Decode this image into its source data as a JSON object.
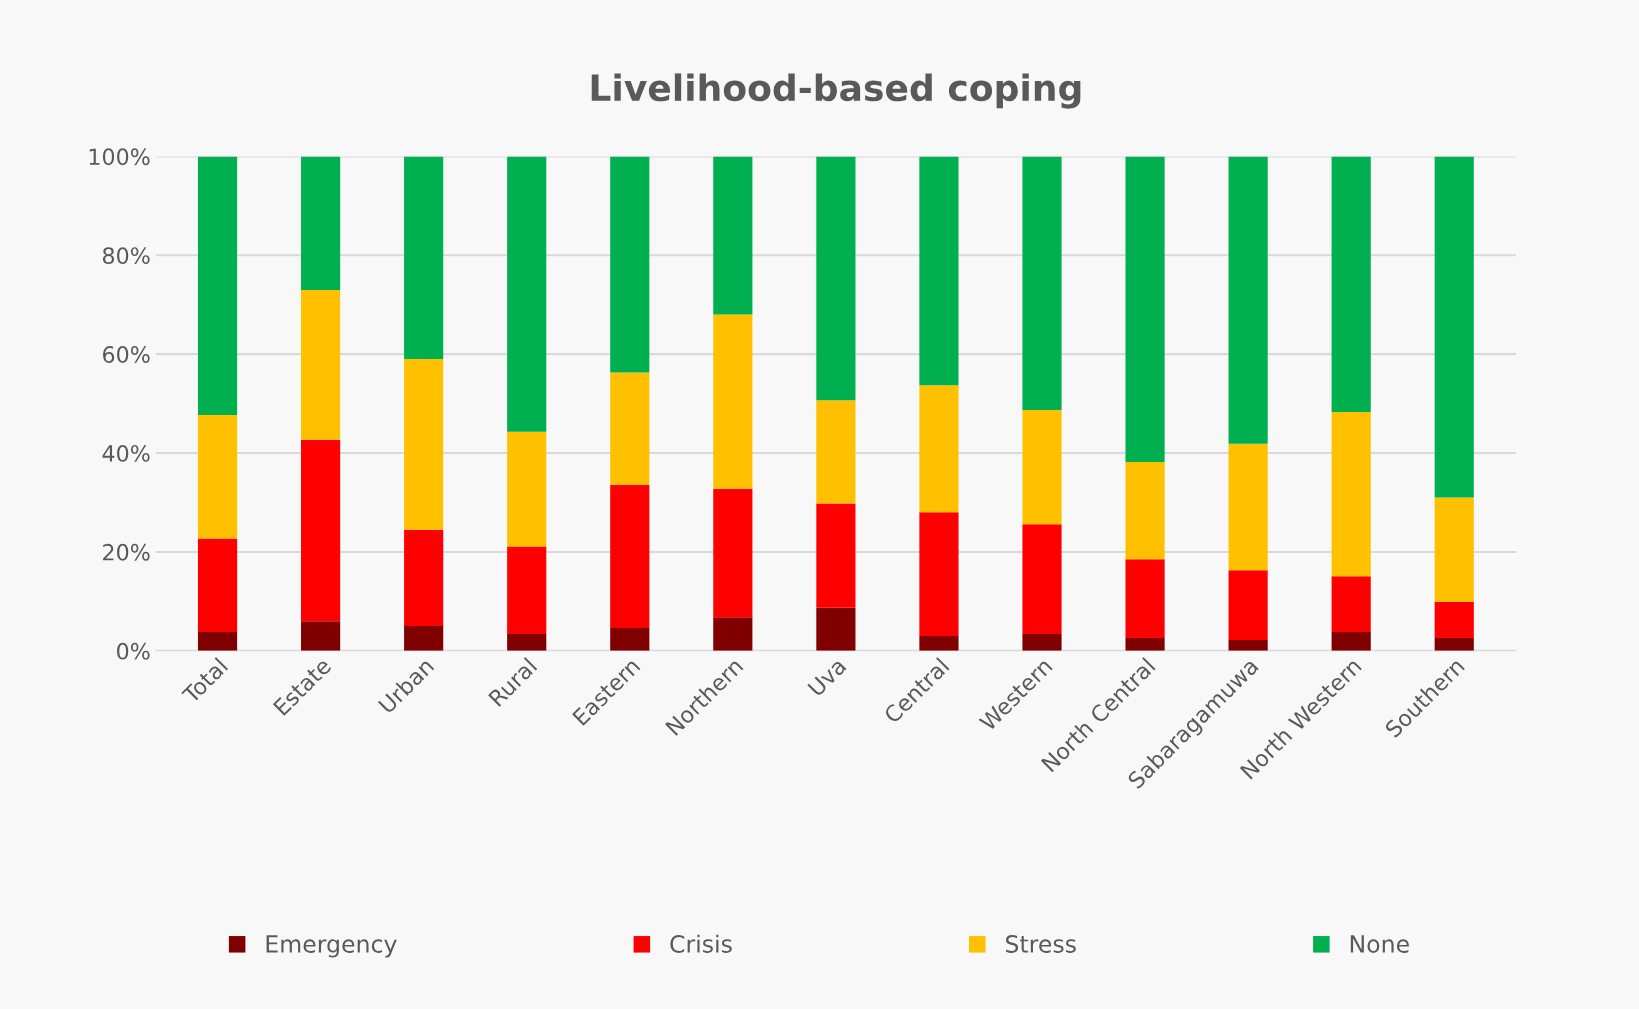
{
  "chart_data": {
    "type": "bar",
    "title": "Livelihood-based coping",
    "stacked": true,
    "categories": [
      "Total",
      "Estate",
      "Urban",
      "Rural",
      "Eastern",
      "Northern",
      "Uva",
      "Central",
      "Western",
      "North Central",
      "Sabaragamuwa",
      "North Western",
      "Southern"
    ],
    "series": [
      {
        "name": "Emergency",
        "color": "#800000",
        "values": [
          3.8,
          6.0,
          5.0,
          3.4,
          4.6,
          6.8,
          8.7,
          3.0,
          3.4,
          2.6,
          2.2,
          3.8,
          2.6
        ]
      },
      {
        "name": "Crisis",
        "color": "#ff0000",
        "values": [
          18.9,
          36.7,
          19.5,
          17.7,
          29.0,
          26.0,
          21.1,
          25.0,
          22.2,
          15.9,
          14.1,
          11.3,
          7.3
        ]
      },
      {
        "name": "Stress",
        "color": "#ffc000",
        "values": [
          25.0,
          30.3,
          34.5,
          23.2,
          22.7,
          35.2,
          20.9,
          25.7,
          23.1,
          19.7,
          25.6,
          33.2,
          21.1
        ]
      },
      {
        "name": "None",
        "color": "#00b050",
        "values": [
          52.3,
          27.0,
          41.0,
          55.7,
          43.7,
          32.0,
          49.3,
          46.3,
          51.3,
          61.8,
          58.1,
          51.7,
          69.0
        ]
      }
    ],
    "ylim": [
      0,
      100
    ],
    "yticks": [
      {
        "value": 0,
        "label": "0%"
      },
      {
        "value": 20,
        "label": "20%"
      },
      {
        "value": 40,
        "label": "40%"
      },
      {
        "value": 60,
        "label": "60%"
      },
      {
        "value": 80,
        "label": "80%"
      },
      {
        "value": 100,
        "label": "100%"
      }
    ],
    "grid": "y",
    "legend": "bottom"
  }
}
